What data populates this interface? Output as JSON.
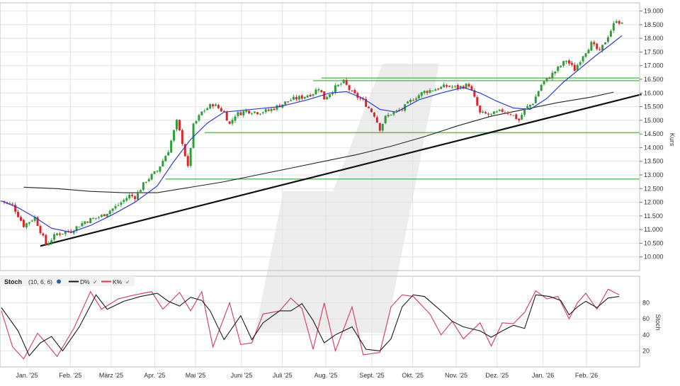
{
  "colors": {
    "up_candle": "#2e9e3a",
    "down_candle": "#d8262a",
    "sma_fast": "#2c3dc8",
    "sma_slow": "#262626",
    "trendline": "#111111",
    "horizontal_lines": "#3aa63a",
    "stoch_d": "#1a1a1a",
    "stoch_k": "#d43a5a",
    "grid": "#e2e2e2",
    "watermark": "#e6e6e6"
  },
  "chart_data": [
    {
      "type": "candlestick",
      "ylabel": "Kurs",
      "ylim": [
        9500,
        19300
      ],
      "y_ticks": [
        "10.000",
        "10.500",
        "11.000",
        "11.500",
        "12.000",
        "12.500",
        "13.000",
        "13.500",
        "14.000",
        "14.500",
        "15.000",
        "15.500",
        "16.000",
        "16.500",
        "17.000",
        "17.500",
        "18.000",
        "18.500",
        "19.000"
      ],
      "y_tick_values": [
        10000,
        10500,
        11000,
        11500,
        12000,
        12500,
        13000,
        13500,
        14000,
        14500,
        15000,
        15500,
        16000,
        16500,
        17000,
        17500,
        18000,
        18500,
        19000
      ],
      "x_labels": [
        "Jan. '25",
        "Feb. '25",
        "März '25",
        "Apr. '25",
        "Mai '25",
        "Juni '25",
        "Juli '25",
        "Aug. '25",
        "Sept. '25",
        "Okt. '25",
        "Nov. '25",
        "Dez. '25",
        "Jan. '26",
        "Feb. '26"
      ],
      "grid": "on",
      "price_path": [
        [
          0,
          12050
        ],
        [
          4,
          11900
        ],
        [
          8,
          11150
        ],
        [
          12,
          11450
        ],
        [
          16,
          10450
        ],
        [
          20,
          10850
        ],
        [
          25,
          10950
        ],
        [
          30,
          11300
        ],
        [
          36,
          11500
        ],
        [
          42,
          11900
        ],
        [
          46,
          12250
        ],
        [
          48,
          12200
        ],
        [
          52,
          12800
        ],
        [
          56,
          13150
        ],
        [
          60,
          13900
        ],
        [
          63,
          14950
        ],
        [
          65,
          14200
        ],
        [
          67,
          13250
        ],
        [
          69,
          14800
        ],
        [
          72,
          15300
        ],
        [
          76,
          15600
        ],
        [
          80,
          15300
        ],
        [
          82,
          14850
        ],
        [
          84,
          15200
        ],
        [
          88,
          15350
        ],
        [
          92,
          15300
        ],
        [
          96,
          15350
        ],
        [
          100,
          15550
        ],
        [
          104,
          15750
        ],
        [
          108,
          15850
        ],
        [
          112,
          16000
        ],
        [
          114,
          16200
        ],
        [
          116,
          15800
        ],
        [
          120,
          16200
        ],
        [
          123,
          16400
        ],
        [
          126,
          16000
        ],
        [
          130,
          15700
        ],
        [
          134,
          15200
        ],
        [
          136,
          14700
        ],
        [
          138,
          15100
        ],
        [
          140,
          15250
        ],
        [
          144,
          15400
        ],
        [
          148,
          15800
        ],
        [
          152,
          16050
        ],
        [
          156,
          16150
        ],
        [
          160,
          16250
        ],
        [
          164,
          16200
        ],
        [
          168,
          16300
        ],
        [
          170,
          15800
        ],
        [
          172,
          15250
        ],
        [
          176,
          15200
        ],
        [
          180,
          15350
        ],
        [
          183,
          15250
        ],
        [
          186,
          15000
        ],
        [
          188,
          15400
        ],
        [
          191,
          15650
        ],
        [
          194,
          16300
        ],
        [
          197,
          16600
        ],
        [
          200,
          16900
        ],
        [
          203,
          17200
        ],
        [
          206,
          16850
        ],
        [
          209,
          17400
        ],
        [
          212,
          17800
        ],
        [
          215,
          17500
        ],
        [
          218,
          18100
        ],
        [
          221,
          18700
        ],
        [
          223,
          18500
        ]
      ],
      "count": 224,
      "sma_fast_path": [
        [
          0,
          12050
        ],
        [
          6,
          11800
        ],
        [
          12,
          11450
        ],
        [
          18,
          11050
        ],
        [
          25,
          10900
        ],
        [
          32,
          11150
        ],
        [
          40,
          11550
        ],
        [
          48,
          12000
        ],
        [
          56,
          12600
        ],
        [
          62,
          13500
        ],
        [
          68,
          14300
        ],
        [
          74,
          14900
        ],
        [
          80,
          15300
        ],
        [
          90,
          15400
        ],
        [
          100,
          15500
        ],
        [
          110,
          15750
        ],
        [
          118,
          16000
        ],
        [
          124,
          16050
        ],
        [
          130,
          15800
        ],
        [
          136,
          15400
        ],
        [
          142,
          15300
        ],
        [
          150,
          15750
        ],
        [
          158,
          16000
        ],
        [
          166,
          16200
        ],
        [
          172,
          16000
        ],
        [
          178,
          15700
        ],
        [
          184,
          15450
        ],
        [
          190,
          15400
        ],
        [
          196,
          15800
        ],
        [
          202,
          16400
        ],
        [
          208,
          16900
        ],
        [
          214,
          17400
        ],
        [
          218,
          17700
        ],
        [
          223,
          18100
        ]
      ],
      "sma_slow_path": [
        [
          8,
          12550
        ],
        [
          20,
          12500
        ],
        [
          32,
          12400
        ],
        [
          44,
          12350
        ],
        [
          56,
          12350
        ],
        [
          68,
          12550
        ],
        [
          80,
          12750
        ],
        [
          92,
          13000
        ],
        [
          104,
          13250
        ],
        [
          116,
          13500
        ],
        [
          128,
          13750
        ],
        [
          140,
          14050
        ],
        [
          152,
          14400
        ],
        [
          164,
          14800
        ],
        [
          176,
          15150
        ],
        [
          188,
          15400
        ],
        [
          200,
          15650
        ],
        [
          212,
          15850
        ],
        [
          220,
          16030
        ]
      ],
      "horizontal_lines": [
        16550,
        16450,
        14550,
        12850
      ],
      "horizontal_line_starts": [
        115,
        112,
        73,
        59
      ],
      "trendline": {
        "from": [
          14,
          10400
        ],
        "to": [
          230,
          15950
        ]
      }
    },
    {
      "type": "line",
      "title": "Stoch",
      "parameters": "(10, 6, 6)",
      "ylabel": "Stoch",
      "ylim": [
        0,
        100
      ],
      "y_ticks": [
        "20",
        "40",
        "60",
        "80"
      ],
      "y_tick_values": [
        20,
        40,
        60,
        80
      ],
      "series": [
        {
          "name": "D%",
          "path": [
            [
              0,
              74
            ],
            [
              6,
              45
            ],
            [
              10,
              14
            ],
            [
              14,
              30
            ],
            [
              18,
              38
            ],
            [
              22,
              20
            ],
            [
              28,
              50
            ],
            [
              34,
              90
            ],
            [
              38,
              72
            ],
            [
              44,
              82
            ],
            [
              50,
              88
            ],
            [
              56,
              92
            ],
            [
              60,
              82
            ],
            [
              64,
              76
            ],
            [
              68,
              87
            ],
            [
              72,
              83
            ],
            [
              75,
              70
            ],
            [
              80,
              34
            ],
            [
              86,
              64
            ],
            [
              90,
              34
            ],
            [
              94,
              55
            ],
            [
              100,
              70
            ],
            [
              104,
              70
            ],
            [
              108,
              79
            ],
            [
              112,
              58
            ],
            [
              116,
              30
            ],
            [
              120,
              40
            ],
            [
              126,
              50
            ],
            [
              131,
              22
            ],
            [
              136,
              20
            ],
            [
              140,
              35
            ],
            [
              144,
              75
            ],
            [
              148,
              90
            ],
            [
              152,
              88
            ],
            [
              158,
              70
            ],
            [
              162,
              57
            ],
            [
              166,
              50
            ],
            [
              172,
              45
            ],
            [
              176,
              37
            ],
            [
              180,
              45
            ],
            [
              184,
              52
            ],
            [
              188,
              48
            ],
            [
              192,
              90
            ],
            [
              197,
              88
            ],
            [
              201,
              83
            ],
            [
              204,
              65
            ],
            [
              207,
              75
            ],
            [
              210,
              82
            ],
            [
              214,
              74
            ],
            [
              218,
              86
            ],
            [
              222,
              88
            ]
          ]
        },
        {
          "name": "K%",
          "path": [
            [
              0,
              70
            ],
            [
              4,
              25
            ],
            [
              8,
              10
            ],
            [
              13,
              42
            ],
            [
              16,
              30
            ],
            [
              20,
              13
            ],
            [
              26,
              48
            ],
            [
              32,
              94
            ],
            [
              36,
              72
            ],
            [
              42,
              85
            ],
            [
              48,
              90
            ],
            [
              54,
              94
            ],
            [
              58,
              72
            ],
            [
              64,
              93
            ],
            [
              68,
              70
            ],
            [
              72,
              94
            ],
            [
              76,
              25
            ],
            [
              82,
              80
            ],
            [
              86,
              28
            ],
            [
              90,
              30
            ],
            [
              94,
              66
            ],
            [
              100,
              70
            ],
            [
              104,
              86
            ],
            [
              108,
              73
            ],
            [
              112,
              22
            ],
            [
              116,
              80
            ],
            [
              120,
              20
            ],
            [
              126,
              75
            ],
            [
              130,
              15
            ],
            [
              136,
              18
            ],
            [
              140,
              75
            ],
            [
              144,
              90
            ],
            [
              148,
              88
            ],
            [
              154,
              66
            ],
            [
              158,
              40
            ],
            [
              162,
              57
            ],
            [
              166,
              35
            ],
            [
              172,
              55
            ],
            [
              176,
              26
            ],
            [
              180,
              55
            ],
            [
              184,
              54
            ],
            [
              188,
              68
            ],
            [
              192,
              95
            ],
            [
              196,
              85
            ],
            [
              200,
              88
            ],
            [
              204,
              60
            ],
            [
              207,
              80
            ],
            [
              210,
              92
            ],
            [
              214,
              72
            ],
            [
              218,
              97
            ],
            [
              222,
              90
            ]
          ]
        }
      ],
      "x_labels": [
        "Jan. '25",
        "Feb. '25",
        "März '25",
        "Apr. '25",
        "Mai '25",
        "Juni '25",
        "Juli '25",
        "Aug. '25",
        "Sept. '25",
        "Okt. '25",
        "Nov. '25",
        "Dez. '25",
        "Jan. '26",
        "Feb. '26"
      ]
    }
  ]
}
